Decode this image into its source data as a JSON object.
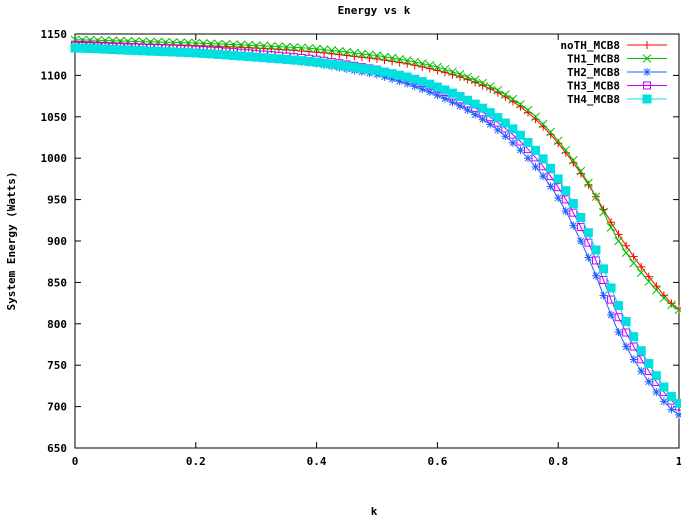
{
  "chart_data": {
    "type": "line",
    "title": "Energy vs k",
    "xlabel": "k",
    "ylabel": "System Energy (Watts)",
    "xlim": [
      0,
      1
    ],
    "ylim": [
      650,
      1150
    ],
    "xticks": [
      "0",
      "0.2",
      "0.4",
      "0.6",
      "0.8",
      "1"
    ],
    "yticks": [
      "650",
      "700",
      "750",
      "800",
      "850",
      "900",
      "950",
      "1000",
      "1050",
      "1100",
      "1150"
    ],
    "grid": false,
    "legend_position": "top-right",
    "x": [
      0,
      0.1,
      0.2,
      0.3,
      0.4,
      0.5,
      0.55,
      0.6,
      0.65,
      0.7,
      0.75,
      0.8,
      0.85,
      0.9,
      0.95,
      1.0
    ],
    "series": [
      {
        "name": "noTH_MCB8",
        "color": "#ff0000",
        "marker": "plus",
        "values": [
          1140,
          1138,
          1136,
          1133,
          1128,
          1120,
          1114,
          1106,
          1095,
          1079,
          1055,
          1018,
          968,
          908,
          857,
          818
        ]
      },
      {
        "name": "TH1_MCB8",
        "color": "#00c000",
        "marker": "x",
        "values": [
          1143,
          1141,
          1139,
          1136,
          1132,
          1124,
          1118,
          1110,
          1098,
          1082,
          1058,
          1021,
          970,
          900,
          851,
          817
        ]
      },
      {
        "name": "TH2_MCB8",
        "color": "#2060ff",
        "marker": "star",
        "values": [
          1135,
          1132,
          1128,
          1122,
          1114,
          1101,
          1090,
          1076,
          1058,
          1034,
          1000,
          952,
          880,
          790,
          730,
          690
        ]
      },
      {
        "name": "TH3_MCB8",
        "color": "#c000ff",
        "marker": "square-open",
        "values": [
          1137,
          1134,
          1131,
          1126,
          1119,
          1107,
          1097,
          1084,
          1066,
          1043,
          1011,
          965,
          898,
          808,
          743,
          700
        ]
      },
      {
        "name": "TH4_MCB8",
        "color": "#00e0e0",
        "marker": "square-filled",
        "values": [
          1133,
          1130,
          1127,
          1122,
          1116,
          1106,
          1098,
          1086,
          1070,
          1049,
          1019,
          975,
          910,
          822,
          752,
          704
        ]
      }
    ]
  }
}
